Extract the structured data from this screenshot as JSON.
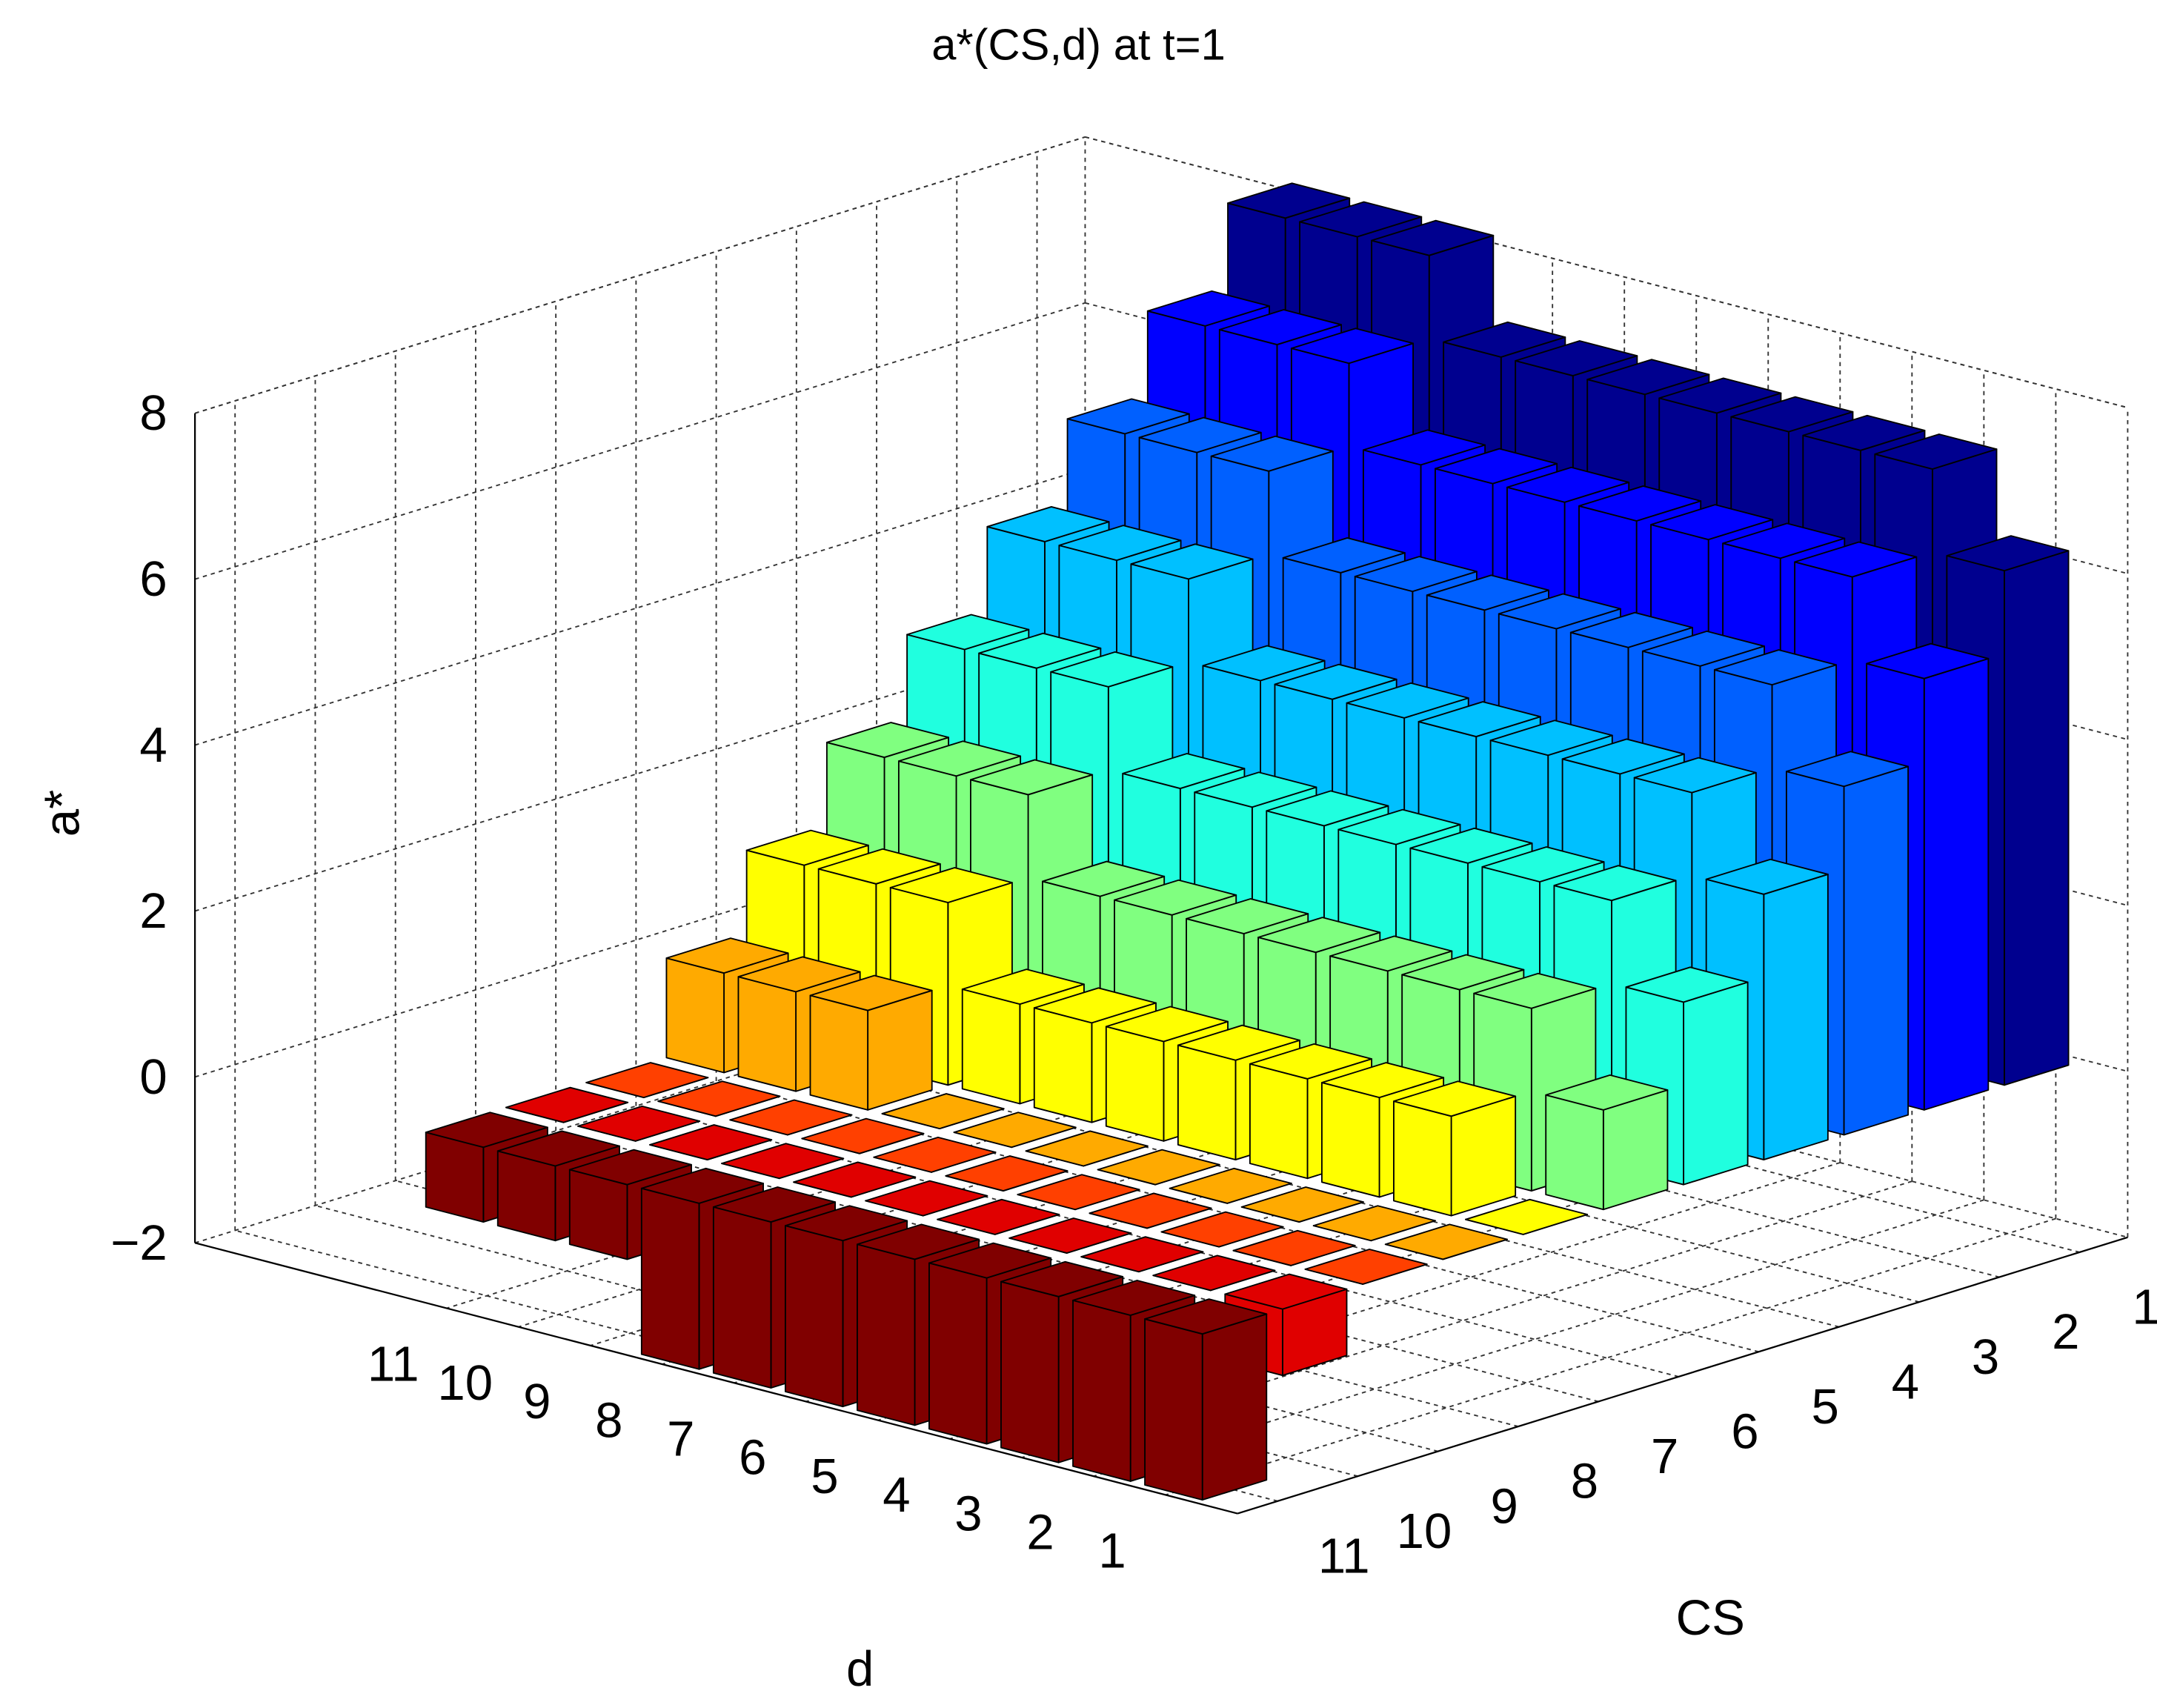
{
  "chart_data": {
    "type": "bar3",
    "title": "a*(CS,d) at t=1",
    "xlabel": "d",
    "ylabel": "CS",
    "zlabel": "a*",
    "xticks": [
      1,
      2,
      3,
      4,
      5,
      6,
      7,
      8,
      9,
      10,
      11
    ],
    "yticks": [
      1,
      2,
      3,
      4,
      5,
      6,
      7,
      8,
      9,
      10,
      11
    ],
    "zlim": [
      -2,
      8
    ],
    "zticks": [
      {
        "value": -2,
        "label": "−2"
      },
      0,
      2,
      4,
      6,
      8
    ],
    "grid": true,
    "series": [
      {
        "color": "#00008f",
        "values": [
          6.2,
          7.2,
          7.2,
          7.2,
          7.2,
          7.2,
          7.2,
          7.2,
          8.2,
          8.2,
          8.2
        ]
      },
      {
        "color": "#0000ff",
        "values": [
          5.2,
          6.2,
          6.2,
          6.2,
          6.2,
          6.2,
          6.2,
          6.2,
          7.2,
          7.2,
          7.2
        ]
      },
      {
        "color": "#0060ff",
        "values": [
          4.2,
          5.2,
          5.2,
          5.2,
          5.2,
          5.2,
          5.2,
          5.2,
          6.2,
          6.2,
          6.2
        ]
      },
      {
        "color": "#00c0ff",
        "values": [
          3.2,
          4.2,
          4.2,
          4.2,
          4.2,
          4.2,
          4.2,
          4.2,
          5.2,
          5.2,
          5.2
        ]
      },
      {
        "color": "#20ffdf",
        "values": [
          2.2,
          3.2,
          3.2,
          3.2,
          3.2,
          3.2,
          3.2,
          3.2,
          4.2,
          4.2,
          4.2
        ]
      },
      {
        "color": "#80ff80",
        "values": [
          1.2,
          2.2,
          2.2,
          2.2,
          2.2,
          2.2,
          2.2,
          2.2,
          3.2,
          3.2,
          3.2
        ]
      },
      {
        "color": "#ffff00",
        "values": [
          0,
          1.2,
          1.2,
          1.2,
          1.2,
          1.2,
          1.2,
          1.2,
          2.2,
          2.2,
          2.2
        ]
      },
      {
        "color": "#ffaa00",
        "values": [
          0,
          0,
          0,
          0,
          0,
          0,
          0,
          0,
          1.2,
          1.2,
          1.2
        ]
      },
      {
        "color": "#ff4000",
        "values": [
          0,
          0,
          0,
          0,
          0,
          0,
          0,
          0,
          0,
          0,
          0
        ]
      },
      {
        "color": "#e00000",
        "values": [
          -0.8,
          0,
          0,
          0,
          0,
          0,
          0,
          0,
          0,
          0,
          0
        ]
      },
      {
        "color": "#800000",
        "values": [
          -2,
          -2,
          -2,
          -2,
          -2,
          -2,
          -2,
          -2,
          -0.9,
          -0.9,
          -0.9
        ]
      }
    ]
  }
}
